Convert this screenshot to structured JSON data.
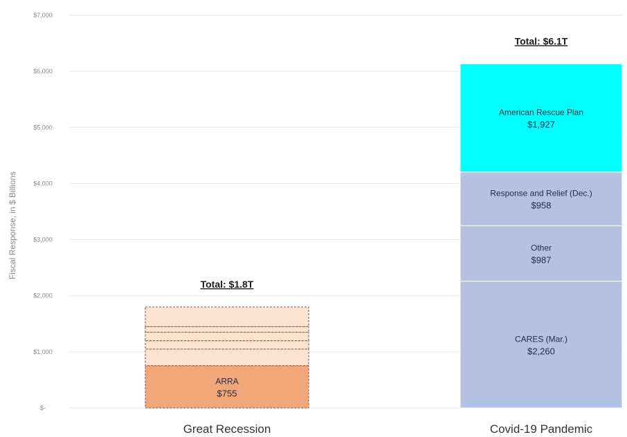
{
  "chart_data": {
    "type": "bar",
    "stacked": true,
    "ylabel": "Fiscal Response, in $ Billions",
    "ylim": [
      0,
      7000
    ],
    "yticks": [
      {
        "value": 0,
        "label": "$-"
      },
      {
        "value": 1000,
        "label": "$1,000"
      },
      {
        "value": 2000,
        "label": "$2,000"
      },
      {
        "value": 3000,
        "label": "$3,000"
      },
      {
        "value": 4000,
        "label": "$4,000"
      },
      {
        "value": 5000,
        "label": "$5,000"
      },
      {
        "value": 6000,
        "label": "$6,000"
      },
      {
        "value": 7000,
        "label": "$7,000"
      }
    ],
    "grid": true,
    "categories": [
      {
        "name": "Great Recession",
        "total_label": "Total: $1.8T",
        "total": 1800,
        "segments": [
          {
            "label": "ARRA",
            "value_label": "$755",
            "value": 755,
            "color": "#f2a77a"
          },
          {
            "label": "",
            "value_label": "",
            "value": 295,
            "color": "#fbe3d1"
          },
          {
            "label": "",
            "value_label": "",
            "value": 150,
            "color": "#fbe3d1"
          },
          {
            "label": "",
            "value_label": "",
            "value": 150,
            "color": "#fbe3d1"
          },
          {
            "label": "",
            "value_label": "",
            "value": 100,
            "color": "#fbe3d1"
          },
          {
            "label": "",
            "value_label": "",
            "value": 350,
            "color": "#fbe3d1"
          }
        ]
      },
      {
        "name": "Covid-19 Pandemic",
        "total_label": "Total: $6.1T",
        "total": 6132,
        "segments": [
          {
            "label": "CARES (Mar.)",
            "value_label": "$2,260",
            "value": 2260,
            "color": "#b3c1e3"
          },
          {
            "label": "Other",
            "value_label": "$987",
            "value": 987,
            "color": "#b3c1e3"
          },
          {
            "label": "Response and Relief (Dec.)",
            "value_label": "$958",
            "value": 958,
            "color": "#b3c1e3"
          },
          {
            "label": "American Rescue Plan",
            "value_label": "$1,927",
            "value": 1927,
            "color": "#00ffff"
          }
        ]
      }
    ]
  }
}
